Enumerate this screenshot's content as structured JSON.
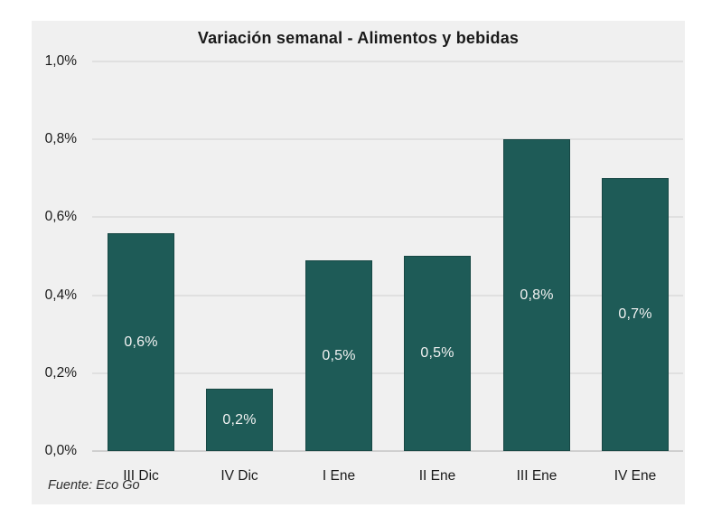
{
  "chart_data": {
    "type": "bar",
    "title": "Variación semanal - Alimentos y bebidas",
    "source_note": "Fuente: Eco Go",
    "categories": [
      "III Dic",
      "IV Dic",
      "I Ene",
      "II Ene",
      "III Ene",
      "IV Ene"
    ],
    "values": [
      0.56,
      0.16,
      0.49,
      0.5,
      0.8,
      0.7
    ],
    "data_labels": [
      "0,6%",
      "0,2%",
      "0,5%",
      "0,5%",
      "0,8%",
      "0,7%"
    ],
    "y_ticks": [
      {
        "value": 0.0,
        "label": "0,0%"
      },
      {
        "value": 0.2,
        "label": "0,2%"
      },
      {
        "value": 0.4,
        "label": "0,4%"
      },
      {
        "value": 0.6,
        "label": "0,6%"
      },
      {
        "value": 0.8,
        "label": "0,8%"
      },
      {
        "value": 1.0,
        "label": "1,0%"
      }
    ],
    "ylim": [
      0,
      1.0
    ],
    "xlabel": "",
    "ylabel": "",
    "grid": true,
    "legend": "none",
    "colors": {
      "bar": "#1e5b57",
      "bar_border": "#174744",
      "bar_label": "#f2f2f2",
      "panel_background": "#f0f0f0",
      "gridline": "#e0e0e0",
      "axis_line": "#cfcfcf",
      "text": "#1a1a1a"
    }
  }
}
